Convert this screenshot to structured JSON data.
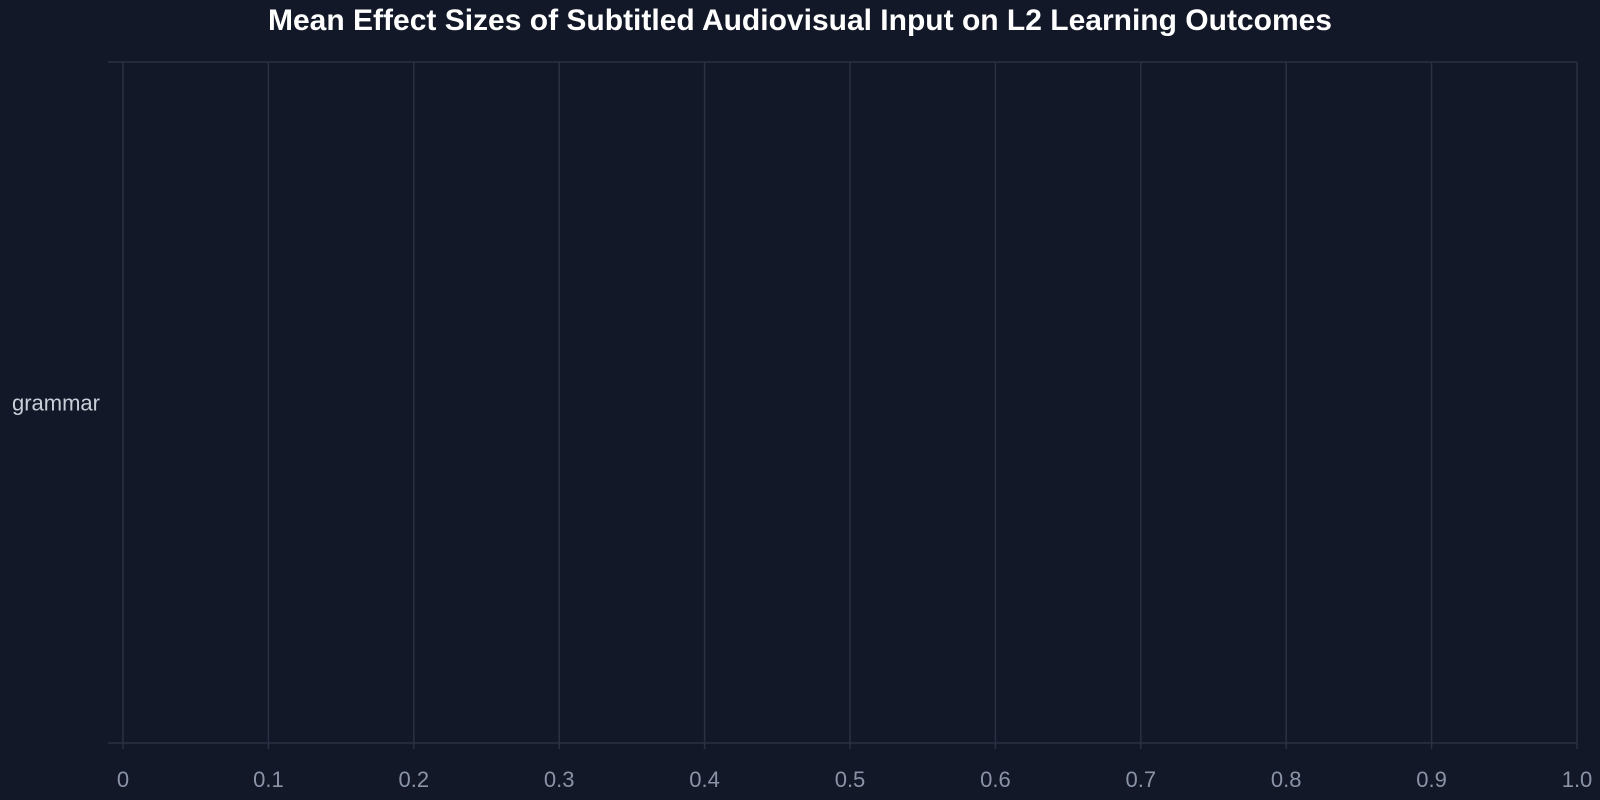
{
  "chart_data": {
    "type": "bar",
    "orientation": "horizontal",
    "title": "Mean Effect Sizes of Subtitled Audiovisual Input on L2 Learning Outcomes",
    "categories": [
      "grammar"
    ],
    "values": [
      0
    ],
    "xlabel": "",
    "ylabel": "",
    "xlim": [
      0,
      1.0
    ],
    "x_ticks": [
      "0",
      "0.1",
      "0.2",
      "0.3",
      "0.4",
      "0.5",
      "0.6",
      "0.7",
      "0.8",
      "0.9",
      "1.0"
    ],
    "grid": true,
    "colors": {
      "background": "#121828",
      "grid": "#2a3142",
      "title": "#ffffff",
      "tick_label": "#8b93a7",
      "category_label": "#c9ced8",
      "bar": "#4f8cff"
    }
  }
}
